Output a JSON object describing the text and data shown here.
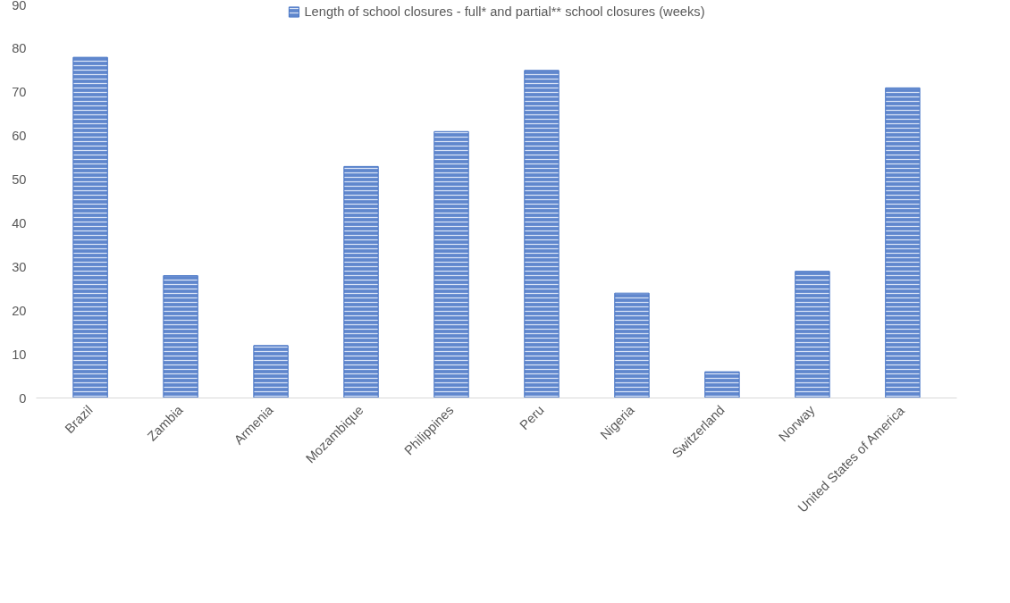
{
  "chart_data": {
    "type": "bar",
    "categories": [
      "Brazil",
      "Zambia",
      "Armenia",
      "Mozambique",
      "Philippines",
      "Peru",
      "Nigeria",
      "Switzerland",
      "Norway",
      "United States of America"
    ],
    "series": [
      {
        "name": "Length of school closures - full* and partial** school closures (weeks)",
        "color": "#4472c4",
        "values": [
          78,
          28,
          12,
          53,
          61,
          75,
          24,
          6,
          29,
          71
        ]
      }
    ],
    "ylim": [
      0,
      90
    ],
    "yticks": [
      0,
      10,
      20,
      30,
      40,
      50,
      60,
      70,
      80,
      90
    ],
    "grid": false,
    "legend": "top"
  }
}
